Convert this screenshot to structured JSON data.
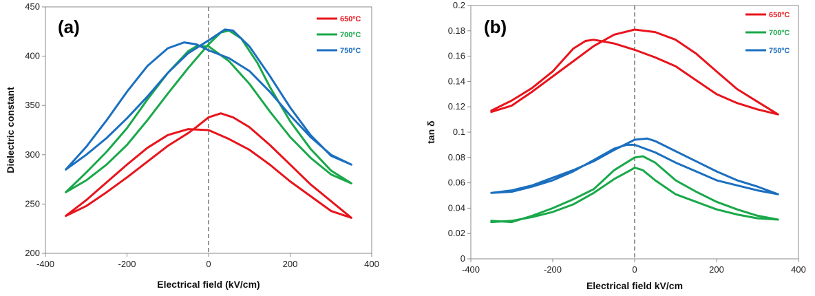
{
  "chart_data": [
    {
      "type": "line",
      "panel_label": "(a)",
      "xlabel": "Electrical field (kV/cm)",
      "ylabel": "Dielectric constant",
      "xlim": [
        -400,
        400
      ],
      "ylim": [
        200,
        450
      ],
      "xticks": [
        -400,
        -200,
        0,
        200,
        400
      ],
      "yticks": [
        200,
        250,
        300,
        350,
        400,
        450
      ],
      "vertical_reference_line_x": 0,
      "legend_position": "top-right",
      "series": [
        {
          "name": "650ºC",
          "color": "#e8141c",
          "x": [
            -350,
            -300,
            -250,
            -200,
            -150,
            -100,
            -50,
            -30,
            0,
            30,
            60,
            100,
            150,
            200,
            250,
            300,
            350,
            300,
            250,
            200,
            150,
            100,
            50,
            0,
            -50,
            -100,
            -150,
            -200,
            -250,
            -300,
            -350
          ],
          "y": [
            238,
            248,
            262,
            277,
            293,
            309,
            322,
            328,
            338,
            342,
            338,
            328,
            310,
            290,
            270,
            253,
            236,
            243,
            258,
            273,
            290,
            305,
            316,
            325,
            326,
            320,
            307,
            290,
            272,
            254,
            238
          ]
        },
        {
          "name": "700ºC",
          "color": "#19a84a",
          "x": [
            -350,
            -300,
            -250,
            -200,
            -150,
            -100,
            -50,
            0,
            30,
            50,
            80,
            120,
            150,
            200,
            250,
            300,
            350,
            300,
            250,
            200,
            150,
            100,
            50,
            0,
            -30,
            -50,
            -100,
            -150,
            -200,
            -250,
            -300,
            -350
          ],
          "y": [
            262,
            274,
            290,
            310,
            335,
            362,
            388,
            412,
            424,
            426,
            418,
            393,
            369,
            334,
            306,
            284,
            271,
            280,
            297,
            318,
            344,
            372,
            395,
            410,
            410,
            405,
            383,
            356,
            327,
            303,
            282,
            262
          ]
        },
        {
          "name": "750ºC",
          "color": "#1b6fbf",
          "x": [
            -350,
            -300,
            -250,
            -200,
            -150,
            -100,
            -50,
            0,
            40,
            60,
            100,
            150,
            200,
            250,
            300,
            350,
            300,
            250,
            200,
            150,
            100,
            50,
            0,
            -30,
            -60,
            -100,
            -150,
            -200,
            -250,
            -300,
            -350
          ],
          "y": [
            285,
            300,
            317,
            337,
            359,
            383,
            403,
            416,
            427,
            426,
            410,
            380,
            348,
            320,
            299,
            290,
            300,
            318,
            340,
            364,
            385,
            398,
            406,
            412,
            414,
            408,
            390,
            364,
            335,
            308,
            285
          ]
        }
      ]
    },
    {
      "type": "line",
      "panel_label": "(b)",
      "xlabel": "Electrical field kV/cm",
      "ylabel": "tan δ",
      "xlim": [
        -400,
        400
      ],
      "ylim": [
        0,
        0.2
      ],
      "xticks": [
        -400,
        -200,
        0,
        200,
        400
      ],
      "yticks": [
        0,
        0.02,
        0.04,
        0.06,
        0.08,
        0.1,
        0.12,
        0.14,
        0.16,
        0.18,
        0.2
      ],
      "vertical_reference_line_x": 0,
      "legend_position": "top-right",
      "series": [
        {
          "name": "650ºC",
          "color": "#e8141c",
          "x": [
            -350,
            -300,
            -250,
            -200,
            -150,
            -120,
            -100,
            -50,
            0,
            50,
            100,
            150,
            200,
            250,
            300,
            350,
            300,
            250,
            200,
            150,
            100,
            50,
            0,
            -50,
            -100,
            -150,
            -200,
            -250,
            -300,
            -350
          ],
          "y": [
            0.117,
            0.125,
            0.135,
            0.148,
            0.166,
            0.172,
            0.173,
            0.17,
            0.165,
            0.159,
            0.152,
            0.141,
            0.13,
            0.123,
            0.118,
            0.114,
            0.124,
            0.134,
            0.148,
            0.162,
            0.173,
            0.179,
            0.181,
            0.177,
            0.168,
            0.156,
            0.144,
            0.132,
            0.121,
            0.116
          ]
        },
        {
          "name": "700ºC",
          "color": "#19a84a",
          "x": [
            -350,
            -300,
            -250,
            -200,
            -150,
            -100,
            -50,
            -10,
            0,
            20,
            50,
            100,
            150,
            200,
            250,
            300,
            350,
            300,
            250,
            200,
            150,
            100,
            50,
            20,
            0,
            -50,
            -100,
            -150,
            -200,
            -250,
            -300,
            -350
          ],
          "y": [
            0.029,
            0.03,
            0.033,
            0.037,
            0.043,
            0.052,
            0.063,
            0.07,
            0.072,
            0.07,
            0.062,
            0.051,
            0.045,
            0.039,
            0.035,
            0.032,
            0.031,
            0.034,
            0.039,
            0.045,
            0.053,
            0.062,
            0.076,
            0.081,
            0.08,
            0.07,
            0.055,
            0.047,
            0.04,
            0.034,
            0.029,
            0.03
          ]
        },
        {
          "name": "750ºC",
          "color": "#1b6fbf",
          "x": [
            -350,
            -300,
            -250,
            -200,
            -150,
            -100,
            -50,
            -20,
            0,
            50,
            100,
            150,
            200,
            250,
            300,
            350,
            300,
            250,
            200,
            150,
            100,
            50,
            30,
            0,
            -50,
            -100,
            -150,
            -200,
            -250,
            -300,
            -350
          ],
          "y": [
            0.052,
            0.053,
            0.057,
            0.062,
            0.069,
            0.078,
            0.087,
            0.09,
            0.09,
            0.084,
            0.076,
            0.069,
            0.062,
            0.058,
            0.054,
            0.051,
            0.057,
            0.062,
            0.069,
            0.077,
            0.085,
            0.093,
            0.095,
            0.094,
            0.086,
            0.077,
            0.07,
            0.064,
            0.058,
            0.054,
            0.052
          ]
        }
      ]
    }
  ]
}
